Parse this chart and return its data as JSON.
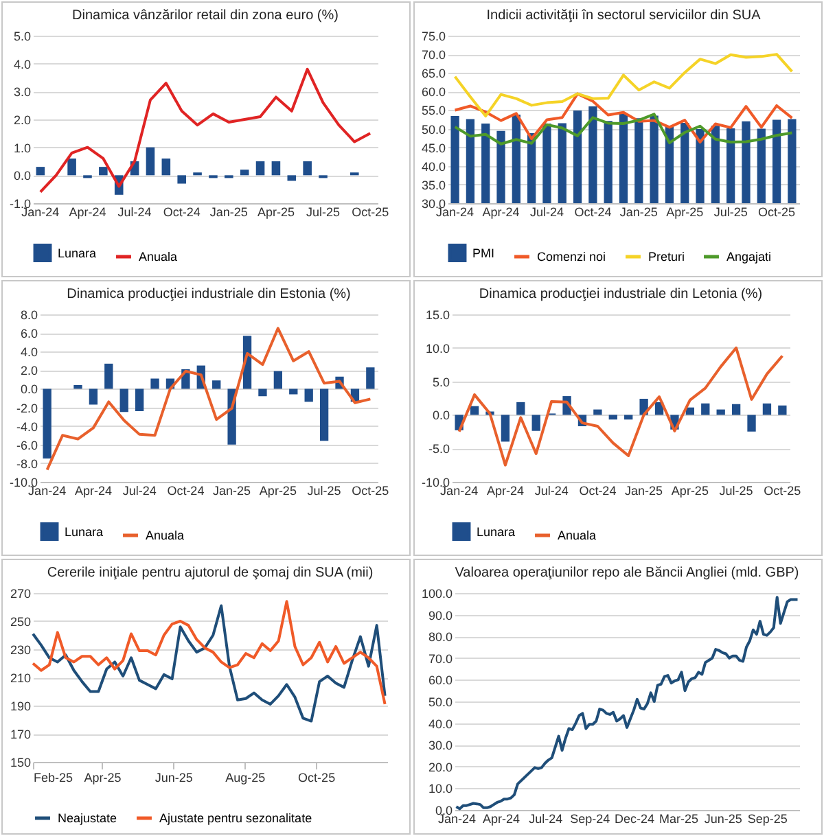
{
  "chart_data": [
    {
      "type": "bar",
      "title": "Dinamica vânzărilor retail din zona euro (%)",
      "categories": [
        "Jan-24",
        null,
        null,
        "Apr-24",
        null,
        null,
        "Jul-24",
        null,
        null,
        "Oct-24",
        null,
        null,
        "Jan-25",
        null,
        null,
        "Apr-25",
        null,
        null,
        "Jul-25",
        null,
        null,
        "Oct-25"
      ],
      "series": [
        {
          "name": "Lunara",
          "color": "#1f4e8c",
          "values": [
            0.3,
            0.0,
            0.6,
            -0.1,
            0.3,
            -0.7,
            0.5,
            1.0,
            0.6,
            -0.3,
            0.1,
            -0.1,
            -0.1,
            0.2,
            0.5,
            0.5,
            -0.2,
            0.5,
            -0.1,
            0.0,
            0.1,
            null
          ]
        },
        {
          "name": "Anuala",
          "type": "line",
          "color": "#e02424",
          "values": [
            -0.6,
            0.0,
            0.8,
            1.0,
            0.6,
            -0.4,
            0.5,
            2.7,
            3.3,
            2.3,
            1.8,
            2.2,
            1.9,
            2.0,
            2.1,
            2.8,
            2.3,
            3.8,
            2.6,
            1.8,
            1.2,
            1.5
          ]
        }
      ],
      "ylim": [
        -1,
        5
      ],
      "yticks": [
        {
          "value": -1,
          "label": "-1.0"
        },
        {
          "value": 0,
          "label": "0.0"
        },
        {
          "value": 1,
          "label": "1.0"
        },
        {
          "value": 2,
          "label": "2.0"
        },
        {
          "value": 3,
          "label": "3.0"
        },
        {
          "value": 4,
          "label": "4.0"
        },
        {
          "value": 5,
          "label": "5.0"
        }
      ],
      "grid": "y",
      "legend": "bottom"
    },
    {
      "type": "bar",
      "title": "Indicii activităţii în sectorul serviciilor din SUA",
      "categories": [
        "Jan-24",
        null,
        null,
        "Apr-24",
        null,
        null,
        "Jul-24",
        null,
        null,
        "Oct-24",
        null,
        null,
        "Jan-25",
        null,
        null,
        "Apr-25",
        null,
        null,
        "Jul-25",
        null,
        null,
        "Oct-25",
        null
      ],
      "series": [
        {
          "name": "PMI",
          "color": "#1f4e8c",
          "values": [
            53.4,
            52.6,
            51.4,
            49.4,
            53.8,
            48.8,
            51.4,
            51.5,
            54.9,
            56.0,
            52.1,
            54.1,
            52.8,
            53.5,
            50.8,
            51.6,
            49.9,
            50.8,
            50.1,
            52.0,
            50.0,
            52.4,
            52.6
          ]
        },
        {
          "name": "Comenzi noi",
          "type": "line",
          "color": "#f05a28",
          "values": [
            55.0,
            56.1,
            54.5,
            52.2,
            54.1,
            47.3,
            52.4,
            53.0,
            59.4,
            57.4,
            53.7,
            54.4,
            52.0,
            52.2,
            50.4,
            52.3,
            46.4,
            51.3,
            50.3,
            56.0,
            50.4,
            56.2,
            52.9
          ]
        },
        {
          "name": "Preturi",
          "type": "line",
          "color": "#f5d327",
          "values": [
            64.0,
            58.6,
            53.4,
            59.2,
            58.1,
            56.3,
            57.0,
            57.3,
            59.4,
            58.1,
            58.2,
            64.4,
            60.4,
            62.6,
            60.9,
            65.1,
            68.7,
            67.5,
            69.9,
            69.2,
            69.4,
            70.0,
            65.4
          ]
        },
        {
          "name": "Angajati",
          "type": "line",
          "color": "#4e9a2a",
          "values": [
            50.5,
            48.0,
            48.5,
            45.9,
            47.1,
            46.1,
            51.1,
            50.2,
            48.1,
            53.0,
            51.5,
            51.4,
            52.3,
            53.9,
            46.2,
            49.0,
            50.7,
            47.2,
            46.4,
            46.5,
            47.2,
            48.2,
            48.9
          ]
        }
      ],
      "ylim": [
        30,
        75
      ],
      "yticks": [
        {
          "value": 30,
          "label": "30.0"
        },
        {
          "value": 35,
          "label": "35.0"
        },
        {
          "value": 40,
          "label": "40.0"
        },
        {
          "value": 45,
          "label": "45.0"
        },
        {
          "value": 50,
          "label": "50.0"
        },
        {
          "value": 55,
          "label": "55.0"
        },
        {
          "value": 60,
          "label": "60.0"
        },
        {
          "value": 65,
          "label": "65.0"
        },
        {
          "value": 70,
          "label": "70.0"
        },
        {
          "value": 75,
          "label": "75.0"
        }
      ],
      "grid": "y",
      "legend": "bottom"
    },
    {
      "type": "bar",
      "title": "Dinamica producţiei industriale din Estonia (%)",
      "categories": [
        "Jan-24",
        null,
        null,
        "Apr-24",
        null,
        null,
        "Jul-24",
        null,
        null,
        "Oct-24",
        null,
        null,
        "Jan-25",
        null,
        null,
        "Apr-25",
        null,
        null,
        "Jul-25",
        null,
        null,
        "Oct-25"
      ],
      "series": [
        {
          "name": "Lunara",
          "color": "#1f4e8c",
          "values": [
            -7.5,
            0.0,
            0.4,
            -1.7,
            2.7,
            -2.5,
            -2.4,
            1.1,
            1.1,
            2.1,
            2.5,
            0.9,
            -6.0,
            5.7,
            -0.8,
            1.9,
            -0.6,
            -1.4,
            -5.6,
            1.3,
            -1.4,
            2.3
          ]
        },
        {
          "name": "Anuala",
          "type": "line",
          "color": "#e8602c",
          "values": [
            -8.7,
            -5.0,
            -5.4,
            -4.2,
            -1.4,
            -3.4,
            -4.9,
            -5.0,
            0.0,
            1.9,
            1.5,
            -3.3,
            -2.1,
            3.8,
            2.6,
            6.5,
            3.0,
            4.0,
            0.6,
            0.8,
            -1.5,
            -1.1
          ]
        }
      ],
      "ylim": [
        -10,
        8
      ],
      "yticks": [
        {
          "value": -10,
          "label": "-10.0"
        },
        {
          "value": -8,
          "label": "-8.0"
        },
        {
          "value": -6,
          "label": "-6.0"
        },
        {
          "value": -4,
          "label": "-4.0"
        },
        {
          "value": -2,
          "label": "-2.0"
        },
        {
          "value": 0,
          "label": "0.0"
        },
        {
          "value": 2,
          "label": "2.0"
        },
        {
          "value": 4,
          "label": "4.0"
        },
        {
          "value": 6,
          "label": "6.0"
        },
        {
          "value": 8,
          "label": "8.0"
        }
      ],
      "grid": "y",
      "legend": "bottom"
    },
    {
      "type": "bar",
      "title": "Dinamica producţiei industriale din Letonia (%)",
      "categories": [
        "Jan-24",
        null,
        null,
        "Apr-24",
        null,
        null,
        "Jul-24",
        null,
        null,
        "Oct-24",
        null,
        null,
        "Jan-25",
        null,
        null,
        "Apr-25",
        null,
        null,
        "Jul-25",
        null,
        null,
        "Oct-25"
      ],
      "series": [
        {
          "name": "Lunara",
          "color": "#1f4e8c",
          "values": [
            -2.3,
            1.3,
            0.5,
            -4.0,
            1.9,
            -2.4,
            0.2,
            2.8,
            -1.7,
            0.8,
            -0.7,
            -0.7,
            2.4,
            1.9,
            -2.2,
            1.1,
            1.7,
            0.8,
            1.6,
            -2.5,
            1.7,
            1.4
          ]
        },
        {
          "name": "Anuala",
          "type": "line",
          "color": "#e8602c",
          "values": [
            -2.5,
            3.0,
            0.2,
            -7.5,
            -0.4,
            -5.8,
            2.0,
            1.9,
            -1.2,
            -1.7,
            -4.2,
            -6.1,
            0.0,
            2.7,
            -2.4,
            2.2,
            4.0,
            7.2,
            10.0,
            2.3,
            6.1,
            8.8
          ]
        }
      ],
      "ylim": [
        -10,
        15
      ],
      "yticks": [
        {
          "value": -10,
          "label": "-10.0"
        },
        {
          "value": -5,
          "label": "-5.0"
        },
        {
          "value": 0,
          "label": "0.0"
        },
        {
          "value": 5,
          "label": "5.0"
        },
        {
          "value": 10,
          "label": "10.0"
        },
        {
          "value": 15,
          "label": "15.0"
        }
      ],
      "grid": "y",
      "legend": "bottom"
    },
    {
      "type": "line",
      "title": "Cererile iniţiale pentru ajutorul de şomaj din SUA (mii)",
      "x": [
        "2025-02-01",
        "2025-02-08",
        "2025-02-15",
        "2025-02-22",
        "2025-03-01",
        "2025-03-08",
        "2025-03-15",
        "2025-03-22",
        "2025-03-29",
        "2025-04-05",
        "2025-04-12",
        "2025-04-19",
        "2025-04-26",
        "2025-05-03",
        "2025-05-10",
        "2025-05-17",
        "2025-05-24",
        "2025-05-31",
        "2025-06-07",
        "2025-06-14",
        "2025-06-21",
        "2025-06-28",
        "2025-07-05",
        "2025-07-12",
        "2025-07-19",
        "2025-07-26",
        "2025-08-02",
        "2025-08-09",
        "2025-08-16",
        "2025-08-23",
        "2025-08-30",
        "2025-09-06",
        "2025-09-13",
        "2025-09-20",
        "2025-09-27",
        "2025-10-04",
        "2025-10-11",
        "2025-10-18",
        "2025-10-25",
        "2025-11-01",
        "2025-11-08",
        "2025-11-15",
        "2025-11-22",
        "2025-11-29"
      ],
      "series": [
        {
          "name": "Neajustate",
          "color": "#1f4e79",
          "values": [
            241,
            233,
            224,
            221,
            226,
            215,
            207,
            200,
            200,
            216,
            221,
            211,
            224,
            208,
            205,
            202,
            212,
            209,
            246,
            236,
            228,
            231,
            240,
            261,
            218,
            194,
            195,
            199,
            194,
            191,
            197,
            205,
            196,
            181,
            179,
            207,
            211,
            206,
            203,
            222,
            239,
            218,
            247,
            197
          ]
        },
        {
          "name": "Ajustate pentru sezonalitate",
          "color": "#f05a28",
          "values": [
            220,
            215,
            219,
            242,
            224,
            221,
            225,
            225,
            219,
            224,
            216,
            222,
            241,
            229,
            229,
            226,
            240,
            248,
            250,
            247,
            237,
            231,
            228,
            221,
            217,
            219,
            227,
            224,
            234,
            229,
            236,
            264,
            232,
            219,
            224,
            235,
            221,
            232,
            220,
            224,
            228,
            224,
            218,
            191
          ]
        }
      ],
      "xlim": [
        "2025-02-01",
        "2025-12-01"
      ],
      "xticks": [
        {
          "value": "2025-02-01",
          "label": "Feb-25"
        },
        {
          "value": "2025-04-01",
          "label": "Apr-25"
        },
        {
          "value": "2025-06-01",
          "label": "Jun-25"
        },
        {
          "value": "2025-08-01",
          "label": "Aug-25"
        },
        {
          "value": "2025-10-01",
          "label": "Oct-25"
        }
      ],
      "ylim": [
        150,
        270
      ],
      "yticks": [
        150,
        170,
        190,
        210,
        230,
        250,
        270
      ],
      "grid": "y",
      "legend": "bottom"
    },
    {
      "type": "line",
      "title": "Valoarea operaţiunilor repo ale Băncii Angliei (mld. GBP)",
      "categories": [
        "Jan-24",
        null,
        null,
        null,
        null,
        null,
        null,
        null,
        null,
        null,
        null,
        null,
        null,
        "Apr-24",
        null,
        null,
        null,
        null,
        null,
        null,
        null,
        null,
        null,
        null,
        null,
        null,
        "Jul-24",
        null,
        null,
        null,
        null,
        null,
        null,
        null,
        null,
        null,
        null,
        null,
        null,
        "Sep-24",
        null,
        null,
        null,
        null,
        null,
        null,
        null,
        null,
        null,
        null,
        null,
        null,
        "Dec-24",
        null,
        null,
        null,
        null,
        null,
        null,
        null,
        null,
        null,
        null,
        null,
        null,
        "Mar-25",
        null,
        null,
        null,
        null,
        null,
        null,
        null,
        null,
        null,
        null,
        null,
        null,
        "Jun-25",
        null,
        null,
        null,
        null,
        null,
        null,
        null,
        null,
        null,
        null,
        null,
        null,
        "Sep-25",
        null,
        null,
        null,
        null,
        null,
        null,
        null,
        null,
        null
      ],
      "series": [
        {
          "color": "#1f4e79",
          "values": [
            1.5,
            0.5,
            2,
            2,
            2.5,
            3,
            2.8,
            2.5,
            1,
            1,
            1.5,
            2.5,
            3.5,
            4,
            5,
            5,
            5.5,
            7,
            12,
            13.5,
            15,
            16.5,
            18,
            19.5,
            19,
            19.5,
            21.5,
            23,
            24,
            29,
            34,
            27.5,
            33,
            37.5,
            37,
            40,
            43.5,
            44.5,
            37.5,
            39.5,
            39.5,
            41,
            46.5,
            46,
            44.5,
            44,
            45,
            41,
            42,
            43.5,
            38,
            42,
            46,
            51,
            47,
            46.5,
            49,
            54,
            50,
            57.5,
            58,
            61.5,
            62,
            58.5,
            59.5,
            60,
            63.5,
            55,
            59,
            60.5,
            61,
            63.5,
            62.5,
            68,
            69,
            70,
            74,
            73.5,
            72.5,
            72,
            70,
            71,
            71,
            69,
            68.5,
            75,
            78,
            83,
            81,
            87,
            81,
            80.5,
            82,
            84,
            98,
            86,
            91,
            96,
            97,
            97,
            97
          ]
        }
      ],
      "ylim": [
        0,
        100
      ],
      "yticks": [
        {
          "value": 0,
          "label": "0.0"
        },
        {
          "value": 10,
          "label": "10.0"
        },
        {
          "value": 20,
          "label": "20.0"
        },
        {
          "value": 30,
          "label": "30.0"
        },
        {
          "value": 40,
          "label": "40.0"
        },
        {
          "value": 50,
          "label": "50.0"
        },
        {
          "value": 60,
          "label": "60.0"
        },
        {
          "value": 70,
          "label": "70.0"
        },
        {
          "value": 80,
          "label": "80.0"
        },
        {
          "value": 90,
          "label": "90.0"
        },
        {
          "value": 100,
          "label": "100.0"
        }
      ],
      "grid": "y"
    }
  ]
}
